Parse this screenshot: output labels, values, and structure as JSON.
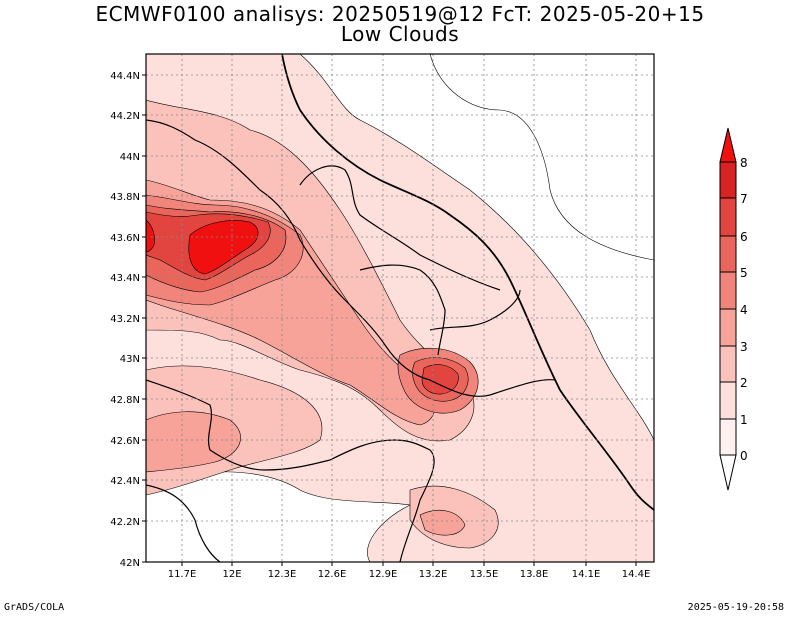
{
  "header": {
    "title_line1": "ECMWF0100 analisys: 20250519@12 FcT: 2025-05-20+15",
    "title_line2": "Low Clouds"
  },
  "footer": {
    "left": "GrADS/COLA",
    "right": "2025-05-19-20:58"
  },
  "axes": {
    "x_ticks": [
      "11.7E",
      "12E",
      "12.3E",
      "12.6E",
      "12.9E",
      "13.2E",
      "13.5E",
      "13.8E",
      "14.1E",
      "14.4E"
    ],
    "y_ticks": [
      "44.4N",
      "44.2N",
      "44N",
      "43.8N",
      "43.6N",
      "43.4N",
      "43.2N",
      "43N",
      "42.8N",
      "42.6N",
      "42.4N",
      "42.2N",
      "42N"
    ]
  },
  "colorbar": {
    "labels": [
      "0",
      "1",
      "2",
      "3",
      "4",
      "5",
      "6",
      "7",
      "8"
    ],
    "colors": [
      "#ffffff",
      "#fde0dc",
      "#fbc2bb",
      "#f7a39a",
      "#f1857b",
      "#ea665c",
      "#e24540",
      "#d92222",
      "#f01010"
    ]
  },
  "map_colors": {
    "c0": "#ffffff",
    "c1": "#fde0dc",
    "c2": "#fbc2bb",
    "c3": "#f7a39a",
    "c4": "#f1857b",
    "c5": "#ea665c",
    "c6": "#e24540",
    "c7": "#f01010"
  }
}
